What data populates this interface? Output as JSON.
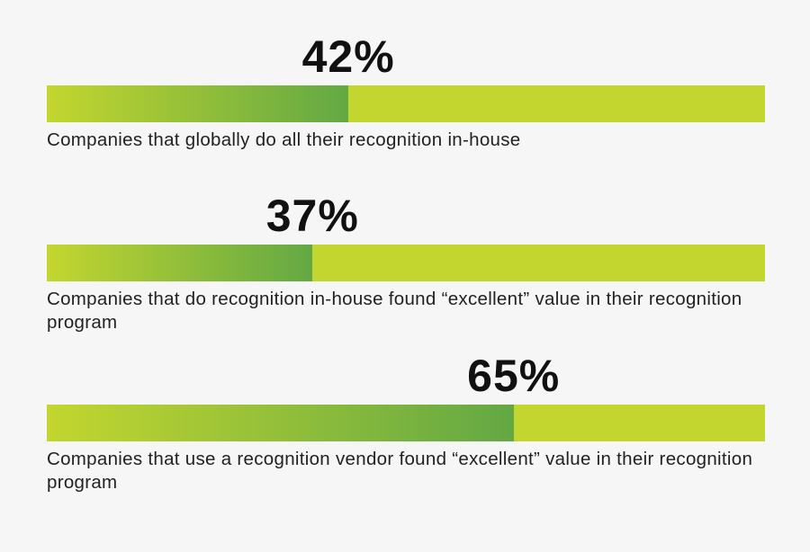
{
  "chart_data": {
    "type": "bar",
    "orientation": "horizontal",
    "xlim": [
      0,
      100
    ],
    "colors": {
      "track": "#c3d62f",
      "fill_start": "#c3d62f",
      "fill_end": "#63a844"
    },
    "items": [
      {
        "value": 42,
        "label": "42%",
        "caption": "Companies that globally do all their recognition in-house"
      },
      {
        "value": 37,
        "label": "37%",
        "caption": "Companies that do recognition in-house found “excellent” value in their recognition program"
      },
      {
        "value": 65,
        "label": "65%",
        "caption": "Companies that use a recognition vendor found “excellent” value in their recognition program"
      }
    ]
  }
}
